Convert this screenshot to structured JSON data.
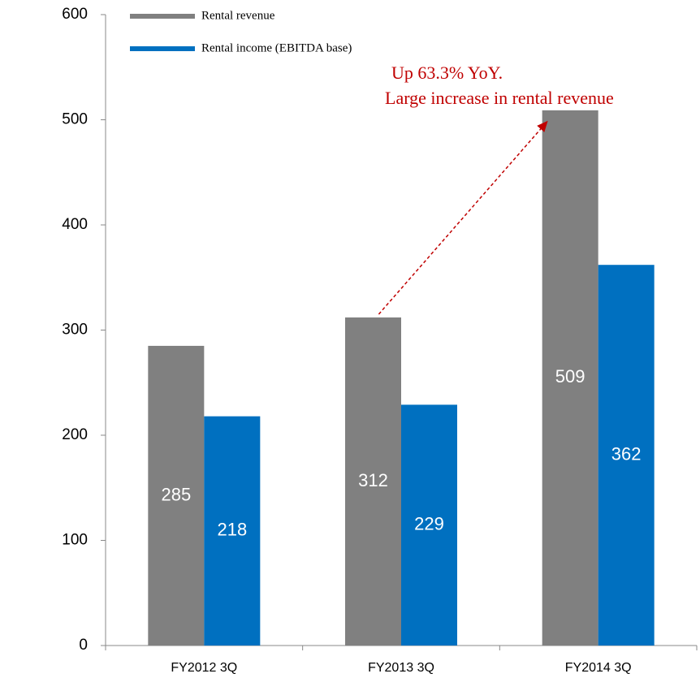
{
  "chart_data": {
    "type": "bar",
    "categories": [
      "FY2012 3Q",
      "FY2013 3Q",
      "FY2014 3Q"
    ],
    "series": [
      {
        "name": "Rental revenue",
        "color": "#808080",
        "values": [
          285,
          312,
          509
        ]
      },
      {
        "name": "Rental income (EBITDA base)",
        "color": "#0070c0",
        "values": [
          218,
          229,
          362
        ]
      }
    ],
    "annotations": [
      "Up 63.3% YoY.",
      "Large increase in rental revenue"
    ],
    "annotation_color": "#c00000",
    "ylim": [
      0,
      600
    ],
    "yticks": [
      0,
      100,
      200,
      300,
      400,
      500,
      600
    ],
    "grid": false,
    "legend": "top"
  }
}
